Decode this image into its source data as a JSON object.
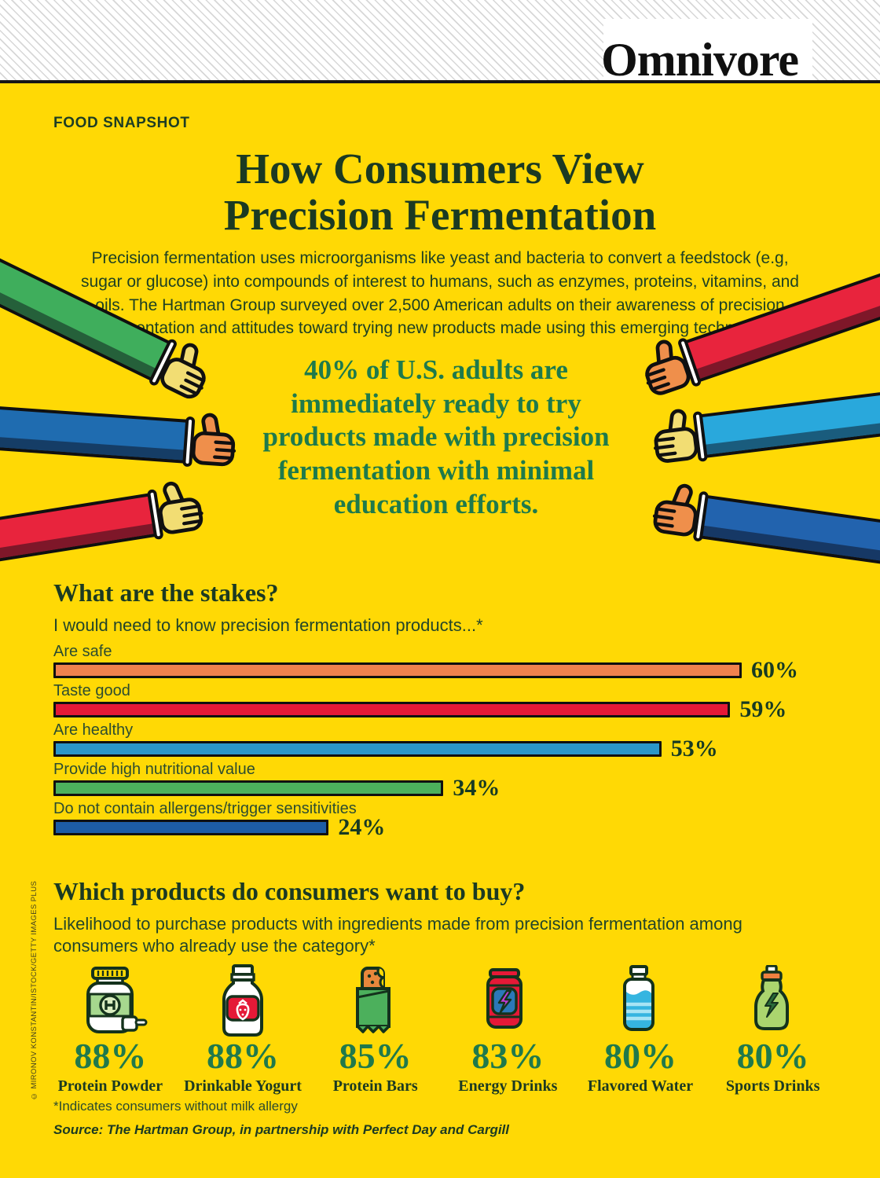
{
  "page": {
    "brand": "Omnivore",
    "kicker": "FOOD SNAPSHOT",
    "title_line1": "How Consumers View",
    "title_line2": "Precision Fermentation",
    "intro": "Precision fermentation uses microorganisms like yeast and bacteria to convert a feedstock (e.g, sugar or glucose) into compounds of interest to humans, such as enzymes, proteins, vitamins, and oils. The Hartman Group surveyed over 2,500 American adults on their awareness of precision fermentation and attitudes toward trying new products made using this emerging technology.",
    "callout": "40% of U.S. adults are immediately ready to try products made with precision fermentation with minimal education efforts.",
    "footnote": "*Indicates consumers without milk allergy",
    "source": "Source: The Hartman Group, in partnership with Perfect Day and Cargill",
    "credit": "© MIRONOV KONSTANTIN/ISTOCK/GETTY IMAGES PLUS"
  },
  "colors": {
    "bg": "#ffd905",
    "callout": "#1e7a4b",
    "pct": "#20794b"
  },
  "stakes": {
    "heading": "What are the stakes?",
    "subheading": "I would need to know precision fermentation products...*",
    "bars": [
      {
        "label": "Are safe",
        "value": 60,
        "display": "60%",
        "color": "#f0824e"
      },
      {
        "label": "Taste good",
        "value": 59,
        "display": "59%",
        "color": "#e51937"
      },
      {
        "label": "Are healthy",
        "value": 53,
        "display": "53%",
        "color": "#2b96c8"
      },
      {
        "label": "Provide high nutritional value",
        "value": 34,
        "display": "34%",
        "color": "#4cb05c"
      },
      {
        "label": "Do not contain allergens/trigger sensitivities",
        "value": 24,
        "display": "24%",
        "color": "#1d5ca5"
      }
    ]
  },
  "products": {
    "heading": "Which products do consumers want to buy?",
    "subheading": "Likelihood to purchase products with ingredients made from precision fermentation among consumers who already use the category*",
    "items": [
      {
        "label": "Protein Powder",
        "value": 88,
        "display": "88%",
        "icon": "protein-powder"
      },
      {
        "label": "Drinkable Yogurt",
        "value": 88,
        "display": "88%",
        "icon": "drinkable-yogurt"
      },
      {
        "label": "Protein Bars",
        "value": 85,
        "display": "85%",
        "icon": "protein-bar"
      },
      {
        "label": "Energy Drinks",
        "value": 83,
        "display": "83%",
        "icon": "energy-drink"
      },
      {
        "label": "Flavored Water",
        "value": 80,
        "display": "80%",
        "icon": "flavored-water"
      },
      {
        "label": "Sports Drinks",
        "value": 80,
        "display": "80%",
        "icon": "sports-drink"
      }
    ]
  },
  "arms": [
    {
      "side": "left",
      "sleeve": "#3fae5c",
      "skin": "#f2dd73"
    },
    {
      "side": "left",
      "sleeve": "#1f6cb0",
      "skin": "#ef8f4b"
    },
    {
      "side": "left",
      "sleeve": "#e8243d",
      "skin": "#f2dd73"
    },
    {
      "side": "right",
      "sleeve": "#e8243d",
      "skin": "#ef8f4b"
    },
    {
      "side": "right",
      "sleeve": "#29a8dc",
      "skin": "#f2dd73"
    },
    {
      "side": "right",
      "sleeve": "#2263ae",
      "skin": "#ef8f4b"
    }
  ],
  "chart_data": [
    {
      "type": "bar",
      "orientation": "horizontal",
      "title": "What are the stakes?",
      "subtitle": "I would need to know precision fermentation products...*",
      "categories": [
        "Are safe",
        "Taste good",
        "Are healthy",
        "Provide high nutritional value",
        "Do not contain allergens/trigger sensitivities"
      ],
      "values": [
        60,
        59,
        53,
        34,
        24
      ],
      "unit": "%",
      "xlim": [
        0,
        100
      ],
      "grid": false,
      "bar_colors": [
        "#f0824e",
        "#e51937",
        "#2b96c8",
        "#4cb05c",
        "#1d5ca5"
      ],
      "data_labels": [
        "60%",
        "59%",
        "53%",
        "34%",
        "24%"
      ]
    },
    {
      "type": "bar",
      "style": "pictogram",
      "title": "Which products do consumers want to buy?",
      "subtitle": "Likelihood to purchase products with ingredients made from precision fermentation among consumers who already use the category*",
      "categories": [
        "Protein Powder",
        "Drinkable Yogurt",
        "Protein Bars",
        "Energy Drinks",
        "Flavored Water",
        "Sports Drinks"
      ],
      "values": [
        88,
        88,
        85,
        83,
        80,
        80
      ],
      "unit": "%",
      "data_labels": [
        "88%",
        "88%",
        "85%",
        "83%",
        "80%",
        "80%"
      ],
      "annotation": "40% of U.S. adults are immediately ready to try products made with precision fermentation with minimal education efforts."
    }
  ]
}
